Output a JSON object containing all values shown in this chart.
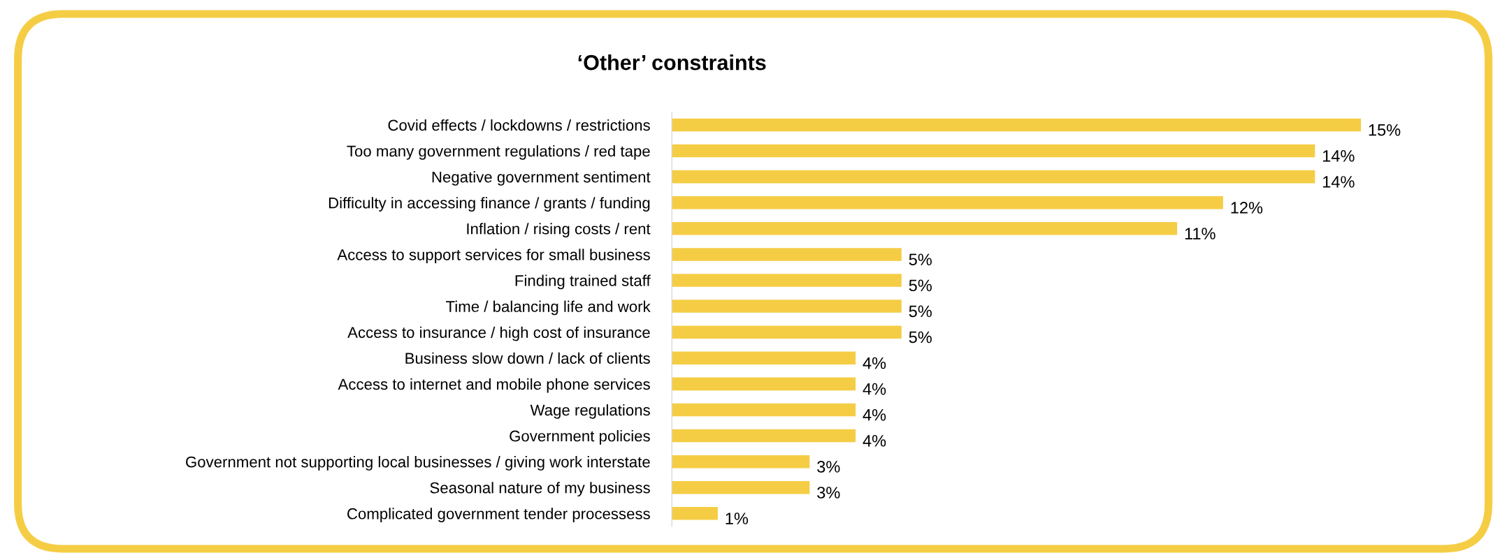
{
  "chart_data": {
    "type": "bar",
    "orientation": "horizontal",
    "title": "‘Other’ constraints",
    "categories": [
      "Covid effects / lockdowns / restrictions",
      "Too many government regulations / red tape",
      "Negative government sentiment",
      "Difficulty in accessing finance / grants / funding",
      "Inflation / rising costs / rent",
      "Access to support services for small business",
      "Finding trained staff",
      "Time / balancing life and work",
      "Access to insurance / high cost of insurance",
      "Business slow down / lack of clients",
      "Access to internet and mobile phone services",
      "Wage regulations",
      "Government policies",
      "Government not supporting local businesses / giving work interstate",
      "Seasonal nature of my business",
      "Complicated government tender processess"
    ],
    "values": [
      15,
      14,
      14,
      12,
      11,
      5,
      5,
      5,
      5,
      4,
      4,
      4,
      4,
      3,
      3,
      1
    ],
    "value_labels": [
      "15%",
      "14%",
      "14%",
      "12%",
      "11%",
      "5%",
      "5%",
      "5%",
      "5%",
      "4%",
      "4%",
      "4%",
      "4%",
      "3%",
      "3%",
      "1%"
    ],
    "color": "#f5cd45",
    "grid": false,
    "legend": false
  }
}
